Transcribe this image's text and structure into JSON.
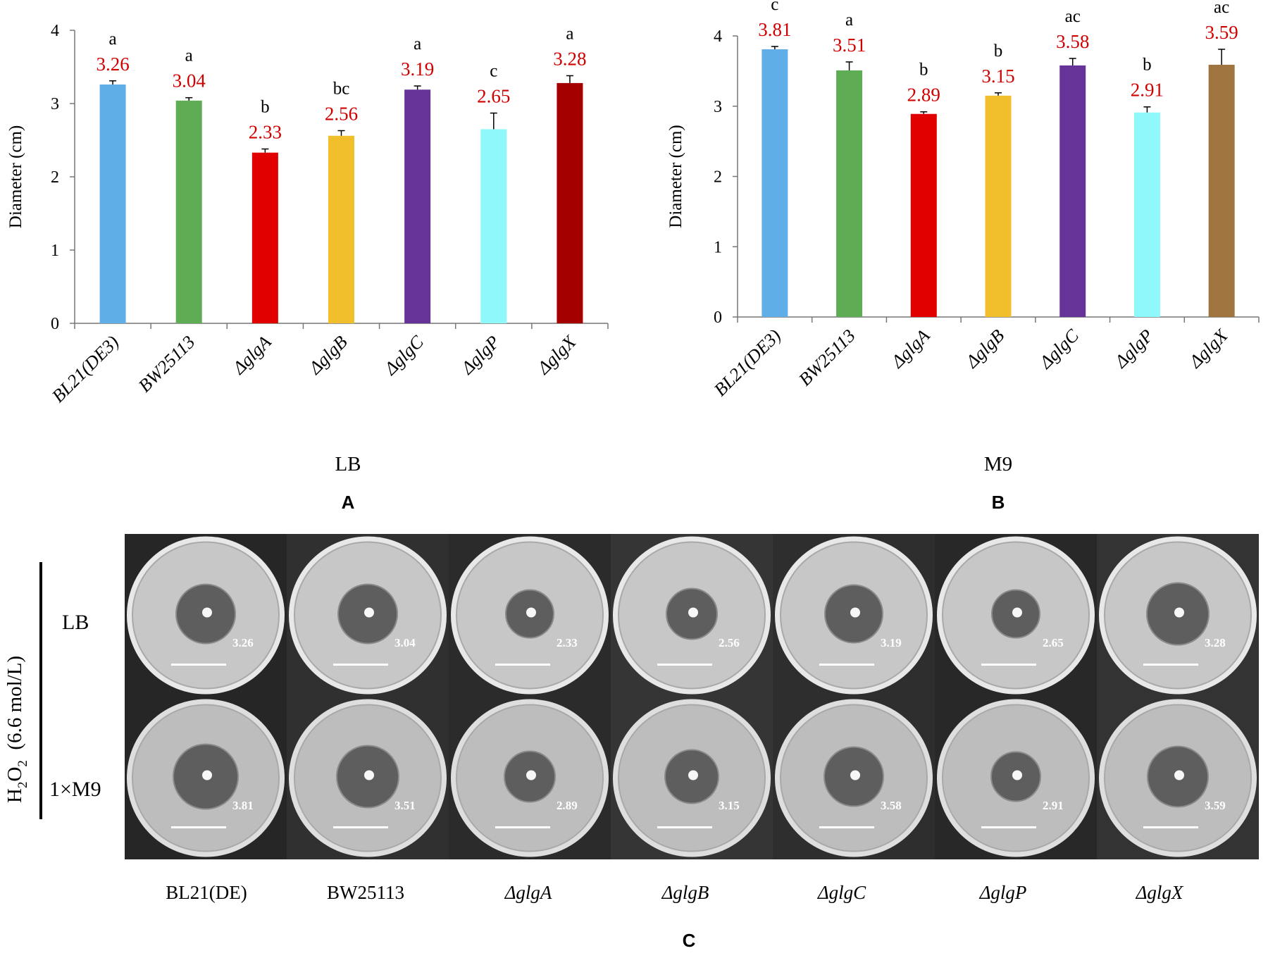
{
  "chart_data": [
    {
      "type": "bar",
      "panel": "A",
      "medium_label": "LB",
      "ylabel": "Diameter (cm)",
      "ylim": [
        0,
        4
      ],
      "yticks": [
        "0",
        "1",
        "2",
        "3",
        "4"
      ],
      "categories": [
        "BL21(DE3)",
        "BW25113",
        "ΔglgA",
        "ΔglgB",
        "ΔglgC",
        "ΔglgP",
        "ΔglgX"
      ],
      "values": [
        3.26,
        3.04,
        2.33,
        2.56,
        3.19,
        2.65,
        3.28
      ],
      "value_labels": [
        "3.26",
        "3.04",
        "2.33",
        "2.56",
        "3.19",
        "2.65",
        "3.28"
      ],
      "errors": [
        0.05,
        0.04,
        0.05,
        0.07,
        0.05,
        0.22,
        0.1
      ],
      "letters": [
        "a",
        "a",
        "b",
        "bc",
        "a",
        "c",
        "a"
      ],
      "colors": [
        "#5FAEE8",
        "#5EAD55",
        "#E00000",
        "#F2BF2C",
        "#663399",
        "#8FF8FA",
        "#A50000"
      ]
    },
    {
      "type": "bar",
      "panel": "B",
      "medium_label": "M9",
      "ylabel": "Diameter (cm)",
      "ylim": [
        0,
        4
      ],
      "yticks": [
        "0",
        "1",
        "2",
        "3",
        "4"
      ],
      "categories": [
        "BL21(DE3)",
        "BW25113",
        "ΔglgA",
        "ΔglgB",
        "ΔglgC",
        "ΔglgP",
        "ΔglgX"
      ],
      "values": [
        3.81,
        3.51,
        2.89,
        3.15,
        3.58,
        2.91,
        3.59
      ],
      "value_labels": [
        "3.81",
        "3.51",
        "2.89",
        "3.15",
        "3.58",
        "2.91",
        "3.59"
      ],
      "errors": [
        0.04,
        0.12,
        0.03,
        0.04,
        0.1,
        0.08,
        0.22
      ],
      "letters": [
        "c",
        "a",
        "b",
        "b",
        "ac",
        "b",
        "ac"
      ],
      "colors": [
        "#5FAEE8",
        "#5EAD55",
        "#E00000",
        "#F2BF2C",
        "#663399",
        "#8FF8FA",
        "#A0743F"
      ]
    }
  ],
  "panel_c": {
    "letter": "C",
    "condition_label_main": "H",
    "condition_sub1": "2",
    "condition_mid": "O",
    "condition_sub2": "2",
    "condition_tail": "  (6.6 mol/L)",
    "row_labels": [
      "LB",
      "1×M9"
    ],
    "column_labels": [
      "BL21(DE)",
      "BW25113",
      "ΔglgA",
      "ΔglgB",
      "ΔglgC",
      "ΔglgP",
      "ΔglgX"
    ],
    "lb_values": [
      "3.26",
      "3.04",
      "2.33",
      "2.56",
      "3.19",
      "2.65",
      "3.28"
    ],
    "m9_values": [
      "3.81",
      "3.51",
      "2.89",
      "3.15",
      "3.58",
      "2.91",
      "3.59"
    ]
  }
}
